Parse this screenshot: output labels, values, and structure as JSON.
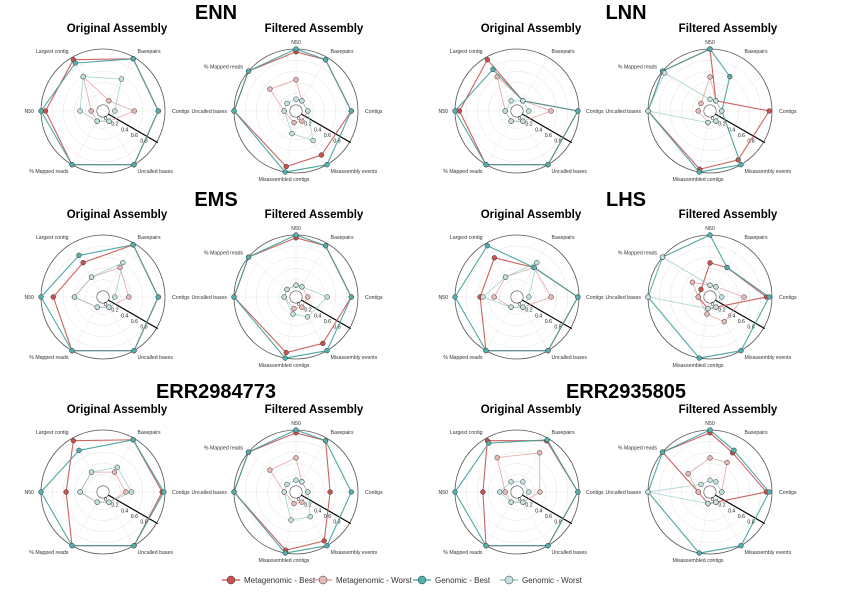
{
  "legend": {
    "entries": [
      {
        "label": "Metagenomic - Best",
        "color": "#c8524f",
        "fill": "#c8524f"
      },
      {
        "label": "Metagenomic - Worst",
        "color": "#d98c8a",
        "fill": "#e7b9b7"
      },
      {
        "label": "Genomic - Best",
        "color": "#3f9e9a",
        "fill": "#54b0ac"
      },
      {
        "label": "Genomic - Worst",
        "color": "#82c4c0",
        "fill": "#c2e2df"
      }
    ]
  },
  "chart_data": [
    {
      "type": "radar",
      "title": "ENN",
      "panels": [
        {
          "subtitle": "Original Assembly",
          "axes": [
            "Basepairs",
            "Contigs",
            "Uncalled bases",
            "% Mapped reads",
            "N50",
            "Largest contig"
          ],
          "ticks": [
            "0",
            "0.2",
            "0.4",
            "0.6",
            "0.8"
          ],
          "series": [
            {
              "name": "Metagenomic - Best",
              "values": [
                0.97,
                0.88,
                1.0,
                1.0,
                0.92,
                0.95
              ]
            },
            {
              "name": "Metagenomic - Worst",
              "values": [
                0.1,
                0.45,
                0.1,
                0.1,
                0.1,
                0.6
              ]
            },
            {
              "name": "Genomic - Best",
              "values": [
                0.97,
                0.88,
                1.0,
                1.0,
                1.0,
                0.88
              ]
            },
            {
              "name": "Genomic - Worst",
              "values": [
                0.55,
                0.1,
                0.1,
                0.1,
                0.3,
                0.6
              ]
            }
          ]
        },
        {
          "subtitle": "Filtered Assembly",
          "axes": [
            "Basepairs",
            "Contigs",
            "Misassembly events",
            "Misassembled contigs",
            "Uncalled bases",
            "% Mapped reads",
            "N50"
          ],
          "ticks": [
            "0",
            "0.2",
            "0.4",
            "0.6",
            "0.8"
          ],
          "series": [
            {
              "name": "Metagenomic - Best",
              "values": [
                0.95,
                0.88,
                0.8,
                0.9,
                1.0,
                1.0,
                0.95
              ]
            },
            {
              "name": "Metagenomic - Worst",
              "values": [
                0.1,
                0.1,
                0.1,
                0.1,
                0.1,
                0.5,
                0.45
              ]
            },
            {
              "name": "Genomic - Best",
              "values": [
                0.95,
                0.88,
                1.0,
                1.0,
                1.0,
                1.0,
                1.0
              ]
            },
            {
              "name": "Genomic - Worst",
              "values": [
                0.1,
                0.1,
                0.5,
                0.3,
                0.1,
                0.1,
                0.1
              ]
            }
          ]
        }
      ]
    },
    {
      "type": "radar",
      "title": "LNN",
      "panels": [
        {
          "subtitle": "Original Assembly",
          "axes": [
            "Basepairs",
            "Contigs",
            "Uncalled bases",
            "% Mapped reads",
            "N50",
            "Largest contig"
          ],
          "ticks": [
            "0",
            "0.2",
            "0.4",
            "0.6",
            "0.8"
          ],
          "series": [
            {
              "name": "Metagenomic - Best",
              "values": [
                0.1,
                0.98,
                1.0,
                1.0,
                0.92,
                0.95
              ]
            },
            {
              "name": "Metagenomic - Worst",
              "values": [
                0.1,
                0.5,
                0.1,
                0.1,
                0.1,
                0.6
              ]
            },
            {
              "name": "Genomic - Best",
              "values": [
                0.1,
                0.98,
                1.0,
                1.0,
                1.0,
                0.75
              ]
            },
            {
              "name": "Genomic - Worst",
              "values": [
                0.1,
                0.1,
                0.1,
                0.1,
                0.1,
                0.1
              ]
            }
          ]
        },
        {
          "subtitle": "Filtered Assembly",
          "axes": [
            "Basepairs",
            "Contigs",
            "Misassembly events",
            "Misassembled contigs",
            "Uncalled bases",
            "% Mapped reads",
            "N50"
          ],
          "ticks": [
            "0",
            "0.2",
            "0.4",
            "0.6",
            "0.8"
          ],
          "series": [
            {
              "name": "Metagenomic - Best",
              "values": [
                0.1,
                0.95,
                0.9,
                0.95,
                1.0,
                1.0,
                1.0
              ]
            },
            {
              "name": "Metagenomic - Worst",
              "values": [
                0.1,
                0.1,
                0.1,
                0.1,
                0.1,
                0.1,
                0.5
              ]
            },
            {
              "name": "Genomic - Best",
              "values": [
                0.6,
                0.1,
                1.0,
                1.0,
                1.0,
                1.0,
                1.0
              ]
            },
            {
              "name": "Genomic - Worst",
              "values": [
                0.1,
                0.1,
                0.1,
                0.1,
                1.0,
                0.95,
                0.1
              ]
            }
          ]
        }
      ]
    },
    {
      "type": "radar",
      "title": "EMS",
      "panels": [
        {
          "subtitle": "Original Assembly",
          "axes": [
            "Basepairs",
            "Contigs",
            "Uncalled bases",
            "% Mapped reads",
            "N50",
            "Largest contig"
          ],
          "ticks": [
            "0",
            "0.2",
            "0.4",
            "0.6",
            "0.8"
          ],
          "series": [
            {
              "name": "Metagenomic - Best",
              "values": [
                0.97,
                0.88,
                1.0,
                1.0,
                0.78,
                0.6
              ]
            },
            {
              "name": "Metagenomic - Worst",
              "values": [
                0.5,
                0.35,
                0.1,
                0.1,
                0.4,
                0.3
              ]
            },
            {
              "name": "Genomic - Best",
              "values": [
                0.97,
                0.88,
                1.0,
                1.0,
                1.0,
                0.75
              ]
            },
            {
              "name": "Genomic - Worst",
              "values": [
                0.6,
                0.1,
                0.1,
                0.1,
                0.4,
                0.3
              ]
            }
          ]
        },
        {
          "subtitle": "Filtered Assembly",
          "axes": [
            "Basepairs",
            "Contigs",
            "Misassembly events",
            "Misassembled contigs",
            "Uncalled bases",
            "% Mapped reads",
            "N50"
          ],
          "ticks": [
            "0",
            "0.2",
            "0.4",
            "0.6",
            "0.8"
          ],
          "series": [
            {
              "name": "Metagenomic - Best",
              "values": [
                0.95,
                0.88,
                0.85,
                0.9,
                1.0,
                1.0,
                0.95
              ]
            },
            {
              "name": "Metagenomic - Worst",
              "values": [
                0.1,
                0.1,
                0.1,
                0.1,
                0.1,
                0.1,
                0.1
              ]
            },
            {
              "name": "Genomic - Best",
              "values": [
                0.95,
                0.88,
                1.0,
                1.0,
                1.0,
                1.0,
                1.0
              ]
            },
            {
              "name": "Genomic - Worst",
              "values": [
                0.1,
                0.45,
                0.3,
                0.2,
                0.1,
                0.1,
                0.1
              ]
            }
          ]
        }
      ]
    },
    {
      "type": "radar",
      "title": "LHS",
      "panels": [
        {
          "subtitle": "Original Assembly",
          "axes": [
            "Basepairs",
            "Contigs",
            "Uncalled bases",
            "% Mapped reads",
            "N50",
            "Largest contig"
          ],
          "ticks": [
            "0",
            "0.2",
            "0.4",
            "0.6",
            "0.8"
          ],
          "series": [
            {
              "name": "Metagenomic - Best",
              "values": [
                0.5,
                0.98,
                1.0,
                1.0,
                0.55,
                0.7
              ]
            },
            {
              "name": "Metagenomic - Worst",
              "values": [
                0.5,
                0.5,
                0.1,
                0.1,
                0.3,
                0.3
              ]
            },
            {
              "name": "Genomic - Best",
              "values": [
                0.5,
                0.98,
                1.0,
                1.0,
                1.0,
                0.95
              ]
            },
            {
              "name": "Genomic - Worst",
              "values": [
                0.6,
                0.1,
                0.1,
                0.1,
                0.5,
                0.3
              ]
            }
          ]
        },
        {
          "subtitle": "Filtered Assembly",
          "axes": [
            "Basepairs",
            "Contigs",
            "Misassembly events",
            "Misassembled contigs",
            "Uncalled bases",
            "% Mapped reads",
            "N50"
          ],
          "ticks": [
            "0",
            "0.2",
            "0.4",
            "0.6",
            "0.8"
          ],
          "series": [
            {
              "name": "Metagenomic - Best",
              "values": [
                0.5,
                0.9,
                0.1,
                0.1,
                0.1,
                0.1,
                0.5
              ]
            },
            {
              "name": "Metagenomic - Worst",
              "values": [
                0.1,
                0.5,
                0.4,
                0.2,
                0.1,
                0.3,
                0.1
              ]
            },
            {
              "name": "Genomic - Best",
              "values": [
                0.5,
                0.95,
                1.0,
                1.0,
                1.0,
                1.0,
                1.0
              ]
            },
            {
              "name": "Genomic - Worst",
              "values": [
                0.1,
                0.1,
                0.1,
                0.1,
                1.0,
                1.0,
                0.1
              ]
            }
          ]
        }
      ]
    },
    {
      "type": "radar",
      "title": "ERR2984773",
      "panels": [
        {
          "subtitle": "Original Assembly",
          "axes": [
            "Basepairs",
            "Contigs",
            "Uncalled bases",
            "% Mapped reads",
            "N50",
            "Largest contig"
          ],
          "ticks": [
            "0",
            "0.2",
            "0.4",
            "0.6",
            "0.8"
          ],
          "series": [
            {
              "name": "Metagenomic - Best",
              "values": [
                0.97,
                0.95,
                1.0,
                1.0,
                0.55,
                0.95
              ]
            },
            {
              "name": "Metagenomic - Worst",
              "values": [
                0.3,
                0.3,
                0.1,
                0.1,
                0.3,
                0.3
              ]
            },
            {
              "name": "Genomic - Best",
              "values": [
                0.97,
                0.98,
                1.0,
                1.0,
                1.0,
                0.75
              ]
            },
            {
              "name": "Genomic - Worst",
              "values": [
                0.4,
                0.4,
                0.1,
                0.1,
                0.3,
                0.3
              ]
            }
          ]
        },
        {
          "subtitle": "Filtered Assembly",
          "axes": [
            "Basepairs",
            "Contigs",
            "Misassembly events",
            "Misassembled contigs",
            "Uncalled bases",
            "% Mapped reads",
            "N50"
          ],
          "ticks": [
            "0",
            "0.2",
            "0.4",
            "0.6",
            "0.8"
          ],
          "series": [
            {
              "name": "Metagenomic - Best",
              "values": [
                0.95,
                0.5,
                0.9,
                0.95,
                1.0,
                1.0,
                0.95
              ]
            },
            {
              "name": "Metagenomic - Worst",
              "values": [
                0.1,
                0.1,
                0.1,
                0.1,
                0.1,
                0.5,
                0.5
              ]
            },
            {
              "name": "Genomic - Best",
              "values": [
                0.95,
                0.88,
                1.0,
                1.0,
                1.0,
                1.0,
                1.0
              ]
            },
            {
              "name": "Genomic - Worst",
              "values": [
                0.1,
                0.1,
                0.4,
                0.4,
                0.1,
                0.1,
                0.1
              ]
            }
          ]
        }
      ]
    },
    {
      "type": "radar",
      "title": "ERR2935805",
      "panels": [
        {
          "subtitle": "Original Assembly",
          "axes": [
            "Basepairs",
            "Contigs",
            "Uncalled bases",
            "% Mapped reads",
            "N50",
            "Largest contig"
          ],
          "ticks": [
            "0",
            "0.2",
            "0.4",
            "0.6",
            "0.8"
          ],
          "series": [
            {
              "name": "Metagenomic - Best",
              "values": [
                0.95,
                0.98,
                1.0,
                1.0,
                0.5,
                0.95
              ]
            },
            {
              "name": "Metagenomic - Worst",
              "values": [
                0.7,
                0.3,
                0.1,
                0.1,
                0.1,
                0.6
              ]
            },
            {
              "name": "Genomic - Best",
              "values": [
                0.97,
                0.98,
                1.0,
                1.0,
                1.0,
                0.9
              ]
            },
            {
              "name": "Genomic - Worst",
              "values": [
                0.1,
                0.1,
                0.1,
                0.1,
                0.2,
                0.1
              ]
            }
          ]
        },
        {
          "subtitle": "Filtered Assembly",
          "axes": [
            "Basepairs",
            "Contigs",
            "Misassembly events",
            "Misassembled contigs",
            "Uncalled bases",
            "% Mapped reads",
            "N50"
          ],
          "ticks": [
            "0",
            "0.2",
            "0.4",
            "0.6",
            "0.8"
          ],
          "series": [
            {
              "name": "Metagenomic - Best",
              "values": [
                0.7,
                0.9,
                0.1,
                0.1,
                0.1,
                1.0,
                0.95
              ]
            },
            {
              "name": "Metagenomic - Worst",
              "values": [
                0.5,
                0.1,
                0.1,
                0.1,
                0.1,
                0.4,
                0.5
              ]
            },
            {
              "name": "Genomic - Best",
              "values": [
                0.75,
                0.95,
                1.0,
                1.0,
                1.0,
                1.0,
                1.0
              ]
            },
            {
              "name": "Genomic - Worst",
              "values": [
                0.1,
                0.1,
                0.1,
                0.1,
                1.0,
                0.1,
                0.1
              ]
            }
          ]
        }
      ]
    }
  ]
}
